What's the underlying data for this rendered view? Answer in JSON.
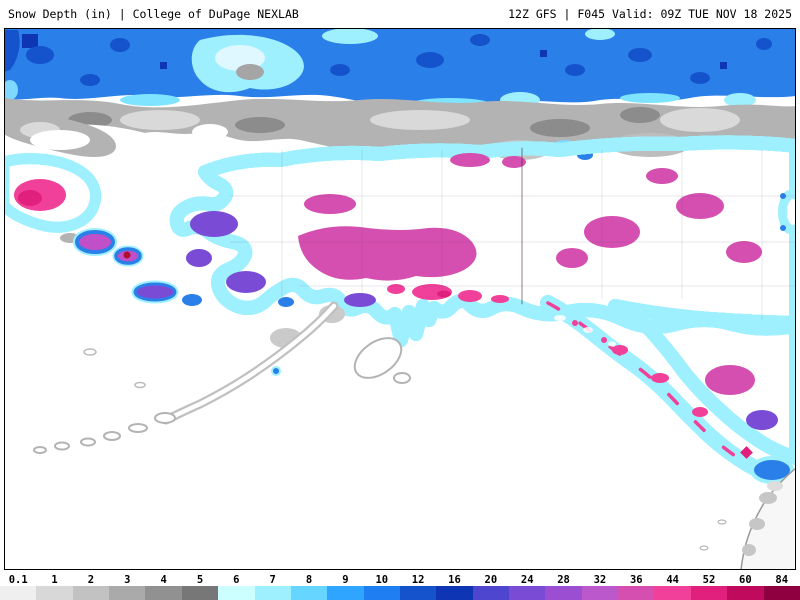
{
  "header": {
    "left_text": "Snow Depth (in) | College of DuPage NEXLAB",
    "right_text": "12Z GFS | F045 Valid: 09Z TUE NOV 18 2025"
  },
  "map": {
    "palette": {
      "ocean_no_snow": "#ffffff",
      "arctic_blue": "#2b7fe8",
      "light_cyan_fringe": "#9ef0ff",
      "gray_band": "#b3b3b3",
      "snow_main_orchid": "#bb58cc",
      "snow_deep_magenta": "#d44fb0",
      "snow_hot_pink": "#f0409a",
      "snow_extreme_pink": "#e0207c",
      "fringe_navy": "#1840c0",
      "fringe_purple": "#7a4cd6"
    }
  },
  "colorbar": {
    "stops": [
      {
        "label": "0.1",
        "color": "#efefef"
      },
      {
        "label": "1",
        "color": "#d8d8d8"
      },
      {
        "label": "2",
        "color": "#c2c2c2"
      },
      {
        "label": "3",
        "color": "#aaaaaa"
      },
      {
        "label": "4",
        "color": "#919191"
      },
      {
        "label": "5",
        "color": "#777777"
      },
      {
        "label": "6",
        "color": "#ccffff"
      },
      {
        "label": "7",
        "color": "#9ef0ff"
      },
      {
        "label": "8",
        "color": "#66d5ff"
      },
      {
        "label": "9",
        "color": "#30a5ff"
      },
      {
        "label": "10",
        "color": "#1e7ef2"
      },
      {
        "label": "12",
        "color": "#1553cc"
      },
      {
        "label": "16",
        "color": "#0e36b4"
      },
      {
        "label": "20",
        "color": "#4f46cf"
      },
      {
        "label": "24",
        "color": "#7a4cd6"
      },
      {
        "label": "28",
        "color": "#9c4ed2"
      },
      {
        "label": "32",
        "color": "#bb58cc"
      },
      {
        "label": "36",
        "color": "#d44fb0"
      },
      {
        "label": "44",
        "color": "#f0409a"
      },
      {
        "label": "52",
        "color": "#e0207c"
      },
      {
        "label": "60",
        "color": "#c00a5e"
      },
      {
        "label": "84",
        "color": "#8f0040"
      }
    ]
  }
}
